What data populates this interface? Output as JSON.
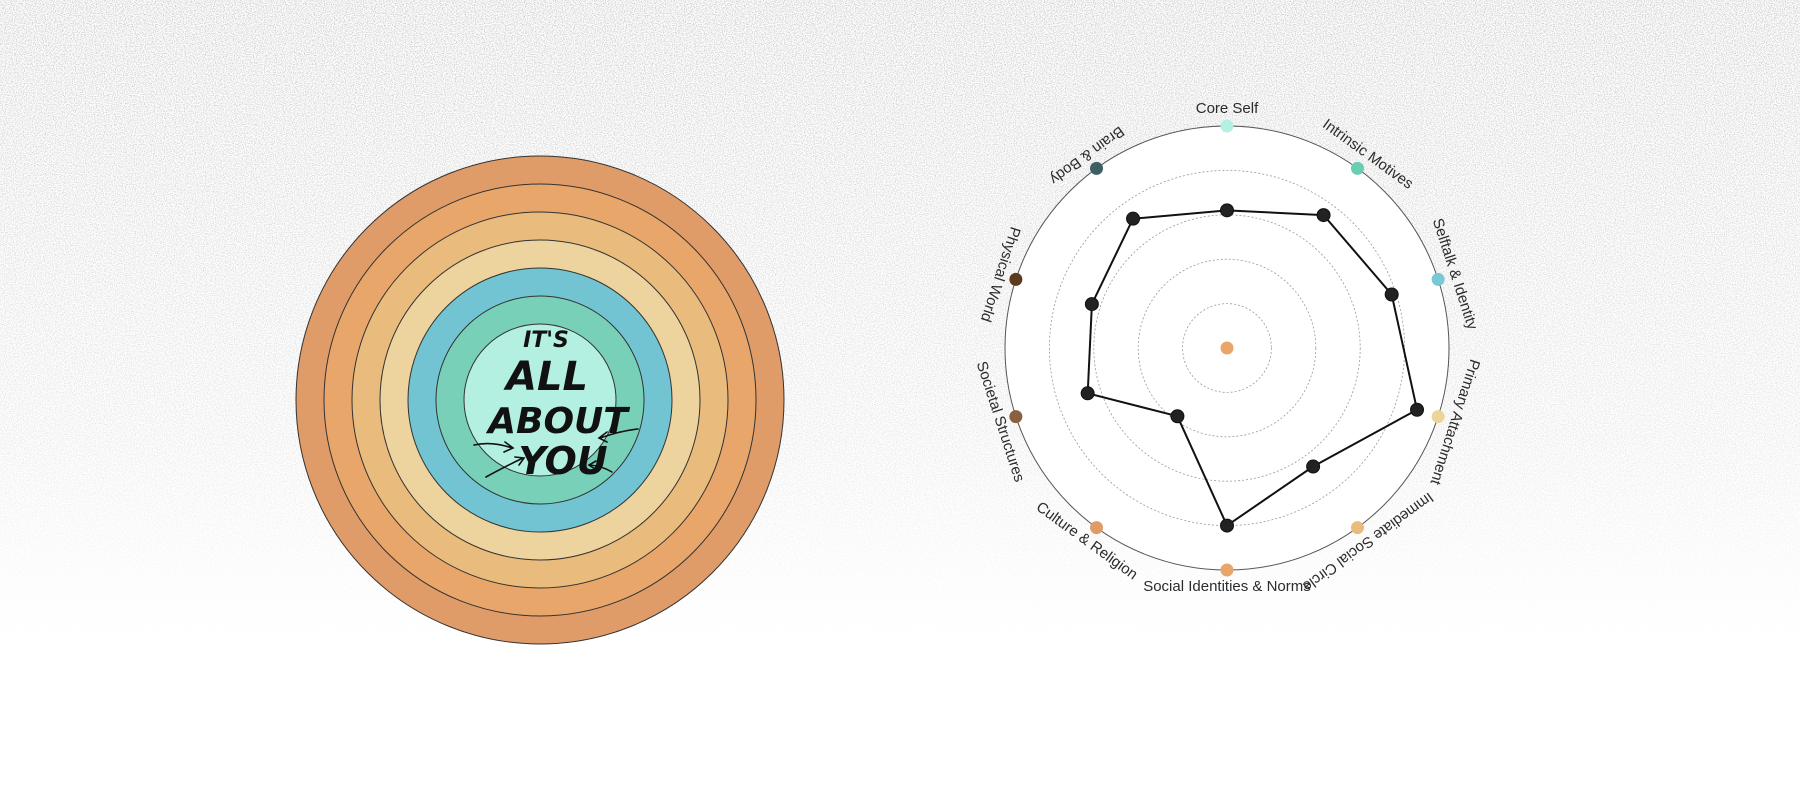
{
  "concentric_graphic": {
    "ring_colors": [
      "#e09c68",
      "#e8a66a",
      "#e9bb7d",
      "#edd39d",
      "#72c4d3",
      "#79d0b8",
      "#b4f0e2"
    ],
    "center_text_lines": [
      "IT'S",
      "ALL",
      "ABOUT",
      "YOU"
    ]
  },
  "chart_data": {
    "type": "radar",
    "title": "",
    "axes": [
      {
        "label": "Core Self",
        "color": "#b4f0e2"
      },
      {
        "label": "Intrinsic Motives",
        "color": "#69cdb2"
      },
      {
        "label": "Selftalk & Identity",
        "color": "#7ac8d6"
      },
      {
        "label": "Primary Attachment",
        "color": "#ecd49a"
      },
      {
        "label": "Immediate Social Circle",
        "color": "#e9bb7d"
      },
      {
        "label": "Social Identities & Norms",
        "color": "#e8a66a"
      },
      {
        "label": "Culture & Religion",
        "color": "#e09c68"
      },
      {
        "label": "Societal Structures",
        "color": "#8a6140"
      },
      {
        "label": "Physical World",
        "color": "#5c3a1c"
      },
      {
        "label": "Brain & Body",
        "color": "#3e5e64"
      }
    ],
    "center_color": "#e8a66a",
    "grid_levels": 5,
    "range": [
      0,
      5
    ],
    "grid": true,
    "series": [
      {
        "values": [
          3.1,
          3.7,
          3.9,
          4.5,
          3.3,
          4.0,
          1.9,
          3.3,
          3.2,
          3.6
        ]
      }
    ]
  }
}
